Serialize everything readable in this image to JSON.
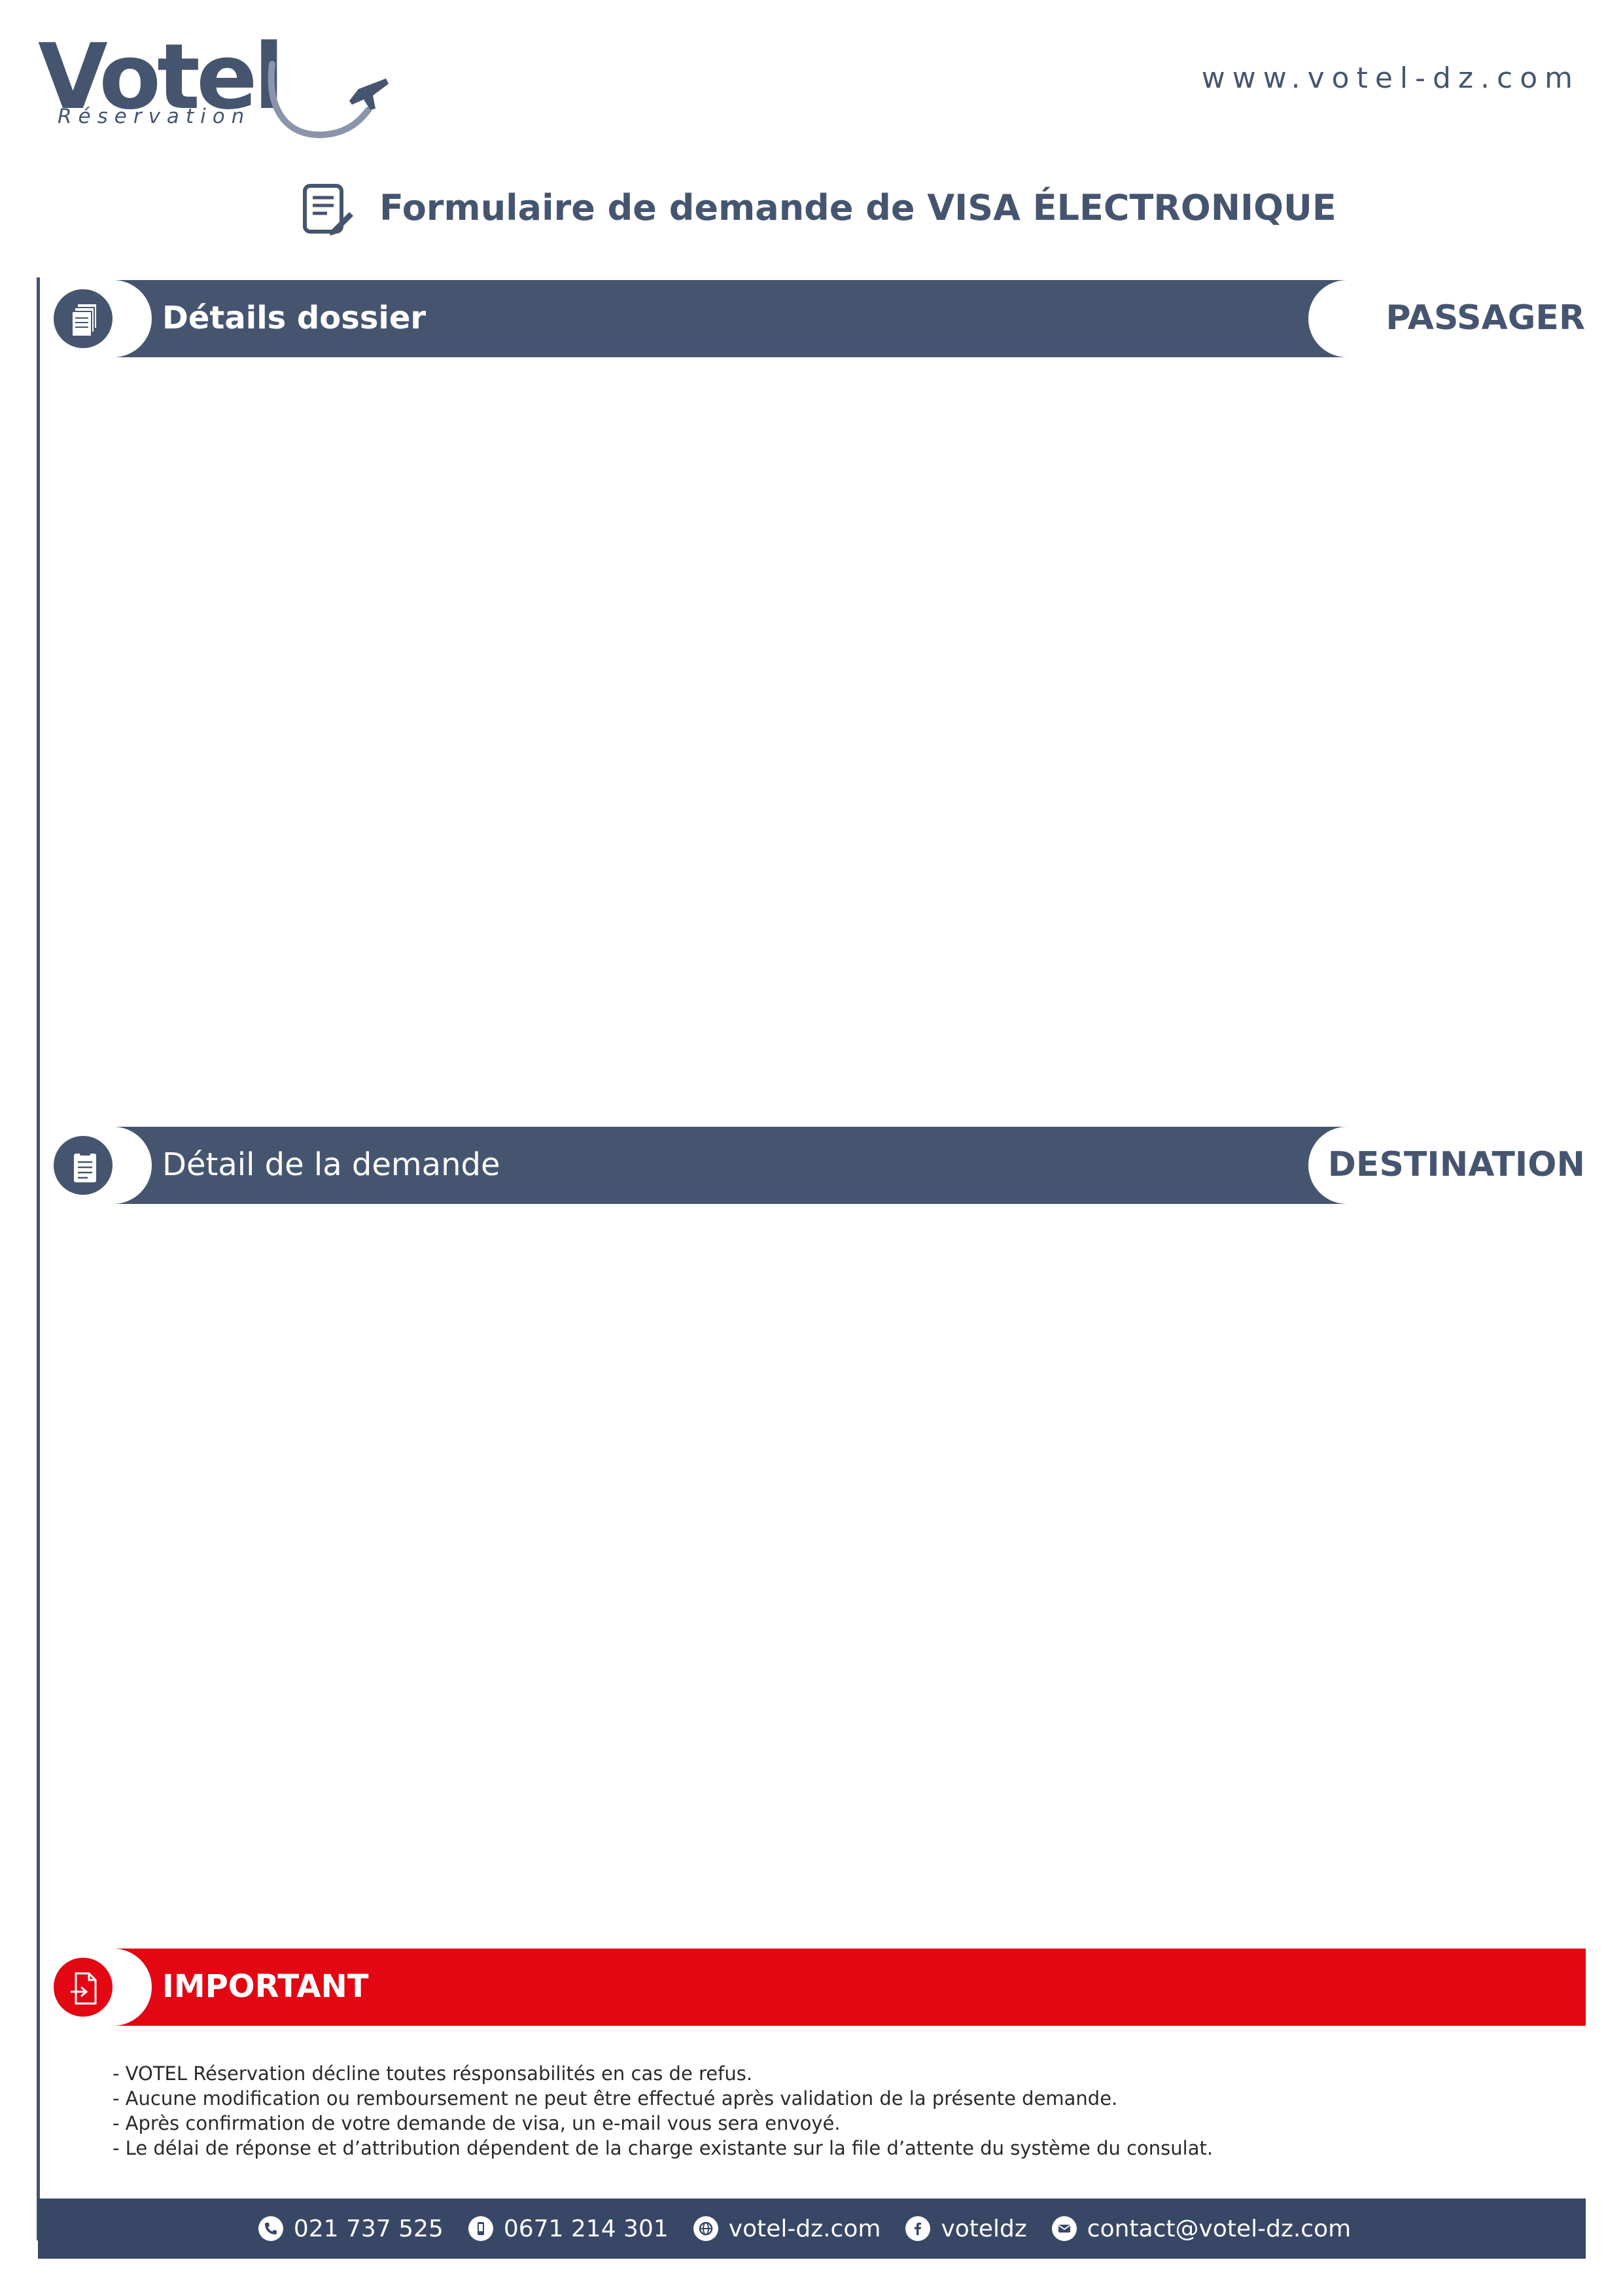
{
  "header": {
    "logo_word": "Votel",
    "logo_sub": "Réservation",
    "website": "www.votel-dz.com",
    "title": "Formulaire de demande de VISA ÉLECTRONIQUE"
  },
  "sections": {
    "dossier": {
      "label": "Détails dossier",
      "tag": "PASSAGER",
      "icon": "documents-icon"
    },
    "demande": {
      "label": "Détail de la demande",
      "tag": "DESTINATION",
      "icon": "clipboard-icon"
    },
    "important": {
      "label": "IMPORTANT",
      "icon": "file-export-icon"
    }
  },
  "notes": [
    "- VOTEL Réservation décline toutes résponsabilités en cas de refus.",
    "- Aucune modification ou remboursement ne peut être effectué après validation de la présente demande.",
    "- Après confirmation de votre demande de visa, un e-mail vous sera envoyé.",
    "- Le délai de réponse et d’attribution dépendent de la charge existante sur la file d’attente du système du consulat."
  ],
  "footer": {
    "phone": "021 737 525",
    "mobile": "0671 214 301",
    "web": "votel-dz.com",
    "facebook": "voteldz",
    "email": "contact@votel-dz.com"
  },
  "colors": {
    "navy": "#46556f",
    "footer_navy": "#384766",
    "red": "#e30613"
  }
}
